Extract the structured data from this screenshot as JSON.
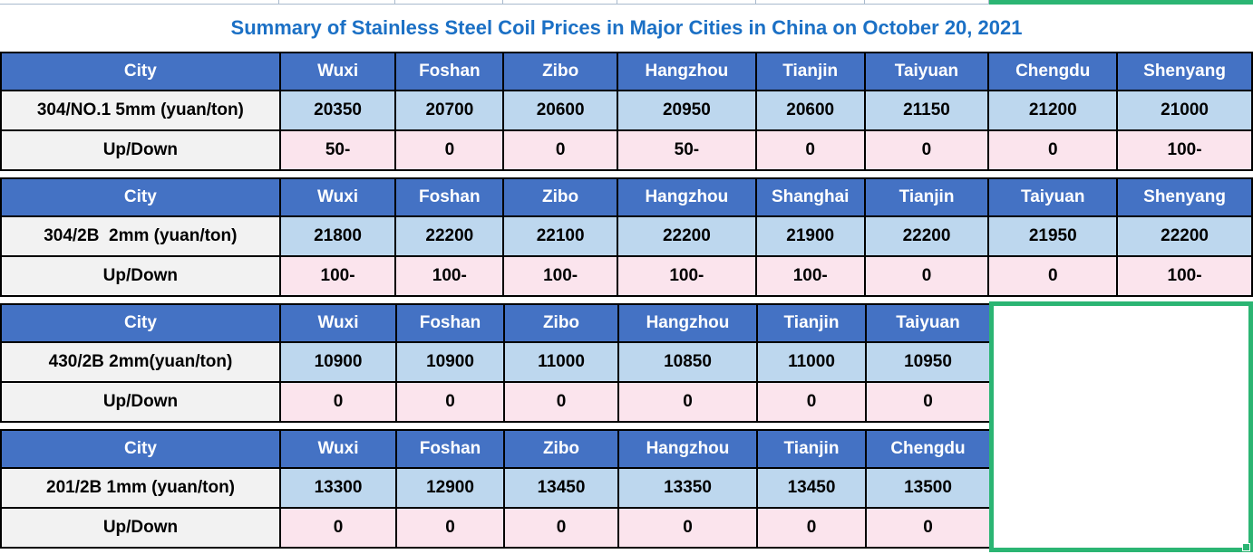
{
  "title": "Summary of Stainless Steel Coil Prices in Major Cities in China on October 20, 2021",
  "colors": {
    "header_bg": "#4472C4",
    "header_text": "#FFFFFF",
    "price_bg": "#BDD7EE",
    "change_bg": "#FBE4ED",
    "label_bg": "#F2F2F2",
    "label_text": "#1B70C5",
    "title_text": "#1B70C5",
    "value_up": "#0CA94F",
    "value_neutral": "#000000",
    "selection_border": "#2BB573",
    "gridline": "#A9BACD",
    "table_border": "#000000"
  },
  "sections": [
    {
      "cities": [
        "City",
        "Wuxi",
        "Foshan",
        "Zibo",
        "Hangzhou",
        "Tianjin",
        "Taiyuan",
        "Chengdu",
        "Shenyang"
      ],
      "product": "304/NO.1 5mm (yuan/ton)",
      "updown": "Up/Down",
      "prices": [
        {
          "v": "20350",
          "green": true
        },
        {
          "v": "20700",
          "green": false
        },
        {
          "v": "20600",
          "green": false
        },
        {
          "v": "20950",
          "green": true
        },
        {
          "v": "20600",
          "green": false
        },
        {
          "v": "21150",
          "green": false
        },
        {
          "v": "21200",
          "green": false
        },
        {
          "v": "21000",
          "green": true
        }
      ],
      "changes": [
        {
          "v": "50-",
          "green": true
        },
        {
          "v": "0",
          "green": false
        },
        {
          "v": "0",
          "green": false
        },
        {
          "v": "50-",
          "green": true
        },
        {
          "v": "0",
          "green": false
        },
        {
          "v": "0",
          "green": false
        },
        {
          "v": "0",
          "green": false
        },
        {
          "v": "100-",
          "green": true
        }
      ]
    },
    {
      "cities": [
        "City",
        "Wuxi",
        "Foshan",
        "Zibo",
        "Hangzhou",
        "Shanghai",
        "Tianjin",
        "Taiyuan",
        "Shenyang"
      ],
      "product": "304/2B  2mm (yuan/ton)",
      "updown": "Up/Down",
      "prices": [
        {
          "v": "21800",
          "green": true
        },
        {
          "v": "22200",
          "green": true
        },
        {
          "v": "22100",
          "green": true
        },
        {
          "v": "22200",
          "green": true
        },
        {
          "v": "21900",
          "green": true
        },
        {
          "v": "22200",
          "green": false
        },
        {
          "v": "21950",
          "green": false
        },
        {
          "v": "22200",
          "green": true
        }
      ],
      "changes": [
        {
          "v": "100-",
          "green": true
        },
        {
          "v": "100-",
          "green": true
        },
        {
          "v": "100-",
          "green": true
        },
        {
          "v": "100-",
          "green": true
        },
        {
          "v": "100-",
          "green": true
        },
        {
          "v": "0",
          "green": false
        },
        {
          "v": "0",
          "green": false
        },
        {
          "v": "100-",
          "green": true
        }
      ]
    },
    {
      "cities": [
        "City",
        "Wuxi",
        "Foshan",
        "Zibo",
        "Hangzhou",
        "Tianjin",
        "Taiyuan"
      ],
      "product": "430/2B 2mm(yuan/ton)",
      "updown": "Up/Down",
      "prices": [
        {
          "v": "10900",
          "green": false
        },
        {
          "v": "10900",
          "green": false
        },
        {
          "v": "11000",
          "green": false
        },
        {
          "v": "10850",
          "green": false
        },
        {
          "v": "11000",
          "green": false
        },
        {
          "v": "10950",
          "green": false
        }
      ],
      "changes": [
        {
          "v": "0",
          "green": false
        },
        {
          "v": "0",
          "green": false
        },
        {
          "v": "0",
          "green": false
        },
        {
          "v": "0",
          "green": false
        },
        {
          "v": "0",
          "green": false
        },
        {
          "v": "0",
          "green": false
        }
      ]
    },
    {
      "cities": [
        "City",
        "Wuxi",
        "Foshan",
        "Zibo",
        "Hangzhou",
        "Tianjin",
        "Chengdu"
      ],
      "product": "201/2B 1mm (yuan/ton)",
      "updown": "Up/Down",
      "prices": [
        {
          "v": "13300",
          "green": false
        },
        {
          "v": "12900",
          "green": false
        },
        {
          "v": "13450",
          "green": false
        },
        {
          "v": "13350",
          "green": false
        },
        {
          "v": "13450",
          "green": false
        },
        {
          "v": "13500",
          "green": false
        }
      ],
      "changes": [
        {
          "v": "0",
          "green": false
        },
        {
          "v": "0",
          "green": false
        },
        {
          "v": "0",
          "green": false
        },
        {
          "v": "0",
          "green": false
        },
        {
          "v": "0",
          "green": false
        },
        {
          "v": "0",
          "green": false
        }
      ]
    }
  ]
}
